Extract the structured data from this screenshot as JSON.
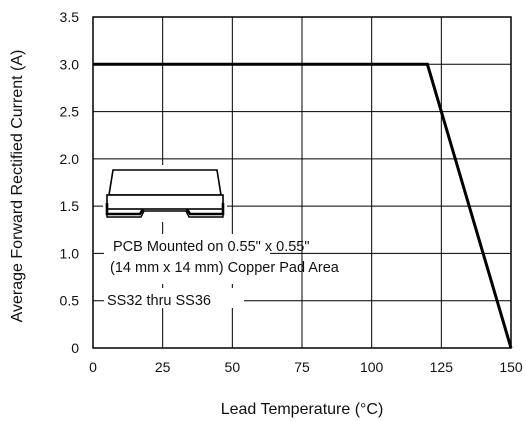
{
  "chart_data": {
    "type": "line",
    "title": "",
    "xlabel": "Lead Temperature (°C)",
    "ylabel": "Average Forward Rectified Current (A)",
    "xlim": [
      0,
      150
    ],
    "ylim": [
      0,
      3.5
    ],
    "x_ticks": [
      0,
      25,
      50,
      75,
      100,
      125,
      150
    ],
    "x_tick_labels": [
      "0",
      "25",
      "50",
      "75",
      "100",
      "125",
      "150"
    ],
    "y_ticks": [
      0,
      0.5,
      1.0,
      1.5,
      2.0,
      2.5,
      3.0,
      3.5
    ],
    "y_tick_labels": [
      "0",
      "0.5",
      "1.0",
      "1.5",
      "2.0",
      "2.5",
      "3.0",
      "3.5"
    ],
    "grid": true,
    "legend": "none",
    "series": [
      {
        "x": [
          0,
          120,
          150
        ],
        "y": [
          3.0,
          3.0,
          0
        ],
        "color": "#000000"
      }
    ],
    "annotations": {
      "pcb_line1": "PCB Mounted on 0.55\" x 0.55\"",
      "pcb_line2": "(14 mm x 14 mm) Copper Pad Area",
      "part_range": "SS32 thru SS36"
    },
    "package_icon": "smd-package-icon"
  }
}
